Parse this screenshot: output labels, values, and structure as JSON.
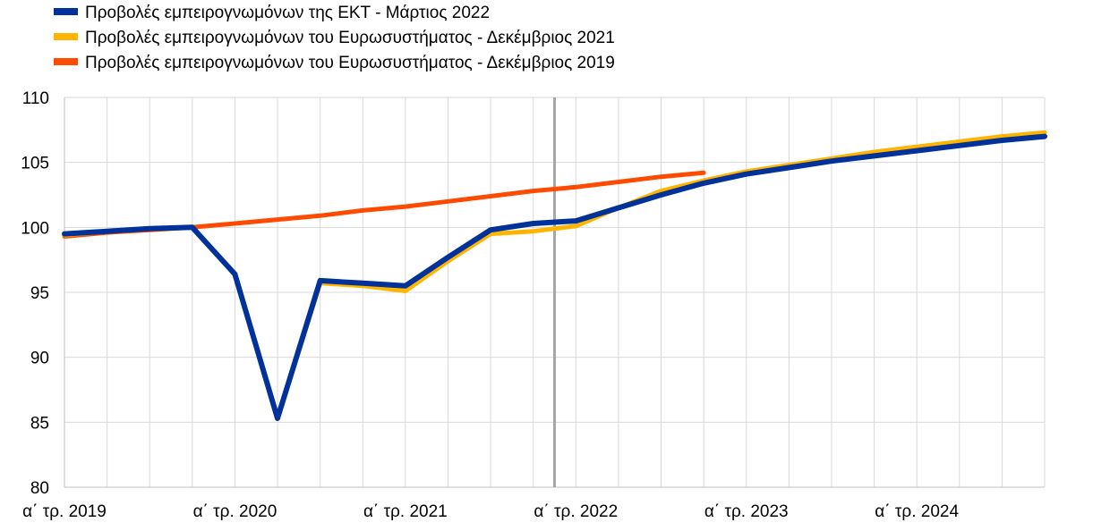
{
  "chart_data": {
    "type": "line",
    "title": "",
    "xlabel": "",
    "ylabel": "",
    "ylim": [
      80,
      110
    ],
    "yticks": [
      80,
      85,
      90,
      95,
      100,
      105,
      110
    ],
    "grid": true,
    "legend_position": "top-left",
    "x_quarters": [
      "2019Q1",
      "2019Q2",
      "2019Q3",
      "2019Q4",
      "2020Q1",
      "2020Q2",
      "2020Q3",
      "2020Q4",
      "2021Q1",
      "2021Q2",
      "2021Q3",
      "2021Q4",
      "2022Q1",
      "2022Q2",
      "2022Q3",
      "2022Q4",
      "2023Q1",
      "2023Q2",
      "2023Q3",
      "2023Q4",
      "2024Q1",
      "2024Q2",
      "2024Q3",
      "2024Q4"
    ],
    "x_tick_labels": [
      {
        "index": 0,
        "label": "α΄ τρ. 2019"
      },
      {
        "index": 4,
        "label": "α΄ τρ. 2020"
      },
      {
        "index": 8,
        "label": "α΄ τρ. 2021"
      },
      {
        "index": 12,
        "label": "α΄ τρ. 2022"
      },
      {
        "index": 16,
        "label": "α΄ τρ. 2023"
      },
      {
        "index": 20,
        "label": "α΄ τρ. 2024"
      }
    ],
    "vertical_marker_index": 11.5,
    "series": [
      {
        "name": "Προβολές εμπειρογνωμόνων του Ευρωσυστήματος - Δεκέμβριος 2019",
        "color": "#ff4b00",
        "values": [
          99.3,
          99.6,
          99.8,
          100.0,
          100.3,
          100.6,
          100.9,
          101.3,
          101.6,
          102.0,
          102.4,
          102.8,
          103.1,
          103.5,
          103.9,
          104.2,
          null,
          null,
          null,
          null,
          null,
          null,
          null,
          null
        ]
      },
      {
        "name": "Προβολές εμπειρογνωμόνων του Ευρωσυστήματος - Δεκέμβριος 2021",
        "color": "#ffb400",
        "values": [
          99.4,
          99.7,
          99.9,
          100.0,
          96.4,
          85.3,
          95.7,
          95.5,
          95.1,
          97.4,
          99.5,
          99.7,
          100.1,
          101.5,
          102.8,
          103.6,
          104.3,
          104.8,
          105.3,
          105.8,
          106.2,
          106.6,
          107.0,
          107.3
        ]
      },
      {
        "name": "Προβολές εμπειρογνωμόνων της ΕΚΤ - Μάρτιος 2022",
        "color": "#003299",
        "values": [
          99.5,
          99.7,
          99.9,
          100.0,
          96.4,
          85.3,
          95.9,
          95.7,
          95.5,
          97.7,
          99.8,
          100.3,
          100.5,
          101.5,
          102.5,
          103.4,
          104.1,
          104.6,
          105.1,
          105.5,
          105.9,
          106.3,
          106.7,
          107.0
        ]
      }
    ],
    "legend_order": [
      2,
      1,
      0
    ]
  }
}
